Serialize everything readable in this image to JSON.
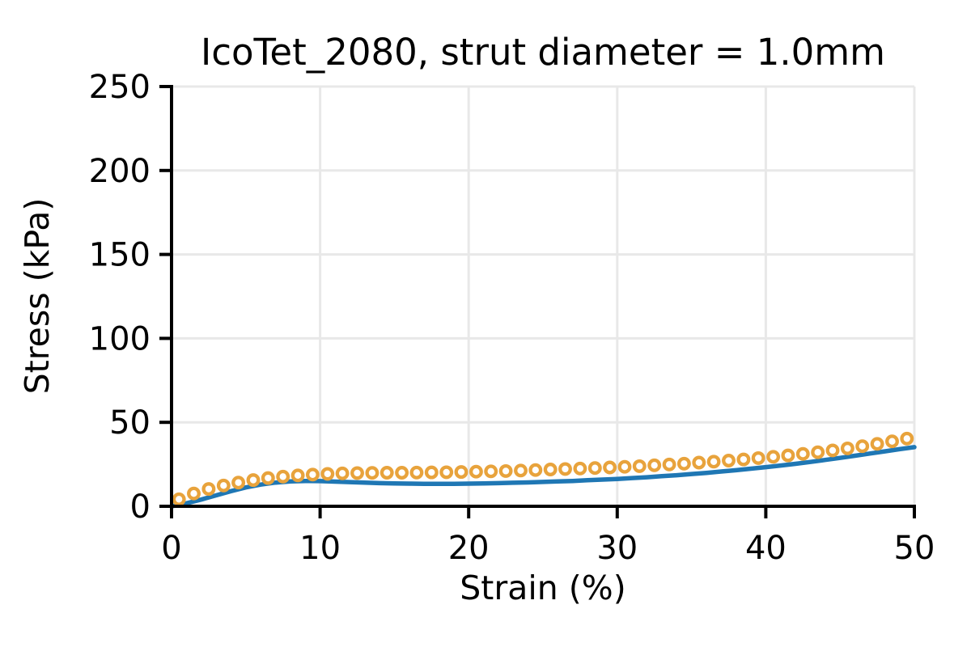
{
  "figure": {
    "background": "#ffffff",
    "text_color": "#000000",
    "grid_color": "#e8e8e8",
    "spine_color": "#000000"
  },
  "chart_data": {
    "type": "line",
    "title": "IcoTet_2080, strut diameter = 1.0mm",
    "xlabel": "Strain (%)",
    "ylabel": "Stress (kPa)",
    "xlim": [
      0,
      50
    ],
    "ylim": [
      0,
      250
    ],
    "xticks": [
      0,
      10,
      20,
      30,
      40,
      50
    ],
    "yticks": [
      0,
      50,
      100,
      150,
      200,
      250
    ],
    "grid": true,
    "legend_position": "none",
    "series": [
      {
        "name": "solid-line-series-blue",
        "type": "line",
        "color": "#1f77b4",
        "line_width": 5.5,
        "x": [
          0,
          1,
          2,
          3,
          4,
          5,
          6,
          7,
          8,
          9,
          10,
          11,
          12,
          13,
          14,
          15,
          16,
          17,
          18,
          19,
          20,
          21,
          22,
          23,
          24,
          25,
          26,
          27,
          28,
          29,
          30,
          31,
          32,
          33,
          34,
          35,
          36,
          37,
          38,
          39,
          40,
          41,
          42,
          43,
          44,
          45,
          46,
          47,
          48,
          49,
          50
        ],
        "y": [
          0,
          1.8,
          4.0,
          6.5,
          9.0,
          11.2,
          12.9,
          14.1,
          14.8,
          15.1,
          15.0,
          14.7,
          14.4,
          14.1,
          13.8,
          13.6,
          13.5,
          13.4,
          13.4,
          13.4,
          13.5,
          13.6,
          13.8,
          14.0,
          14.2,
          14.5,
          14.8,
          15.1,
          15.5,
          15.9,
          16.3,
          16.8,
          17.3,
          17.9,
          18.5,
          19.2,
          19.9,
          20.7,
          21.5,
          22.4,
          23.3,
          24.3,
          25.3,
          26.4,
          27.6,
          28.8,
          30.1,
          31.4,
          32.7,
          34.0,
          35.2
        ]
      },
      {
        "name": "open-circle-series-orange",
        "type": "scatter",
        "marker": "open-circle",
        "color": "#e8a33c",
        "marker_radius": 6.3,
        "marker_stroke_width": 4.3,
        "x": [
          0.5,
          1.5,
          2.5,
          3.5,
          4.5,
          5.5,
          6.5,
          7.5,
          8.5,
          9.5,
          10.5,
          11.5,
          12.5,
          13.5,
          14.5,
          15.5,
          16.5,
          17.5,
          18.5,
          19.5,
          20.5,
          21.5,
          22.5,
          23.5,
          24.5,
          25.5,
          26.5,
          27.5,
          28.5,
          29.5,
          30.5,
          31.5,
          32.5,
          33.5,
          34.5,
          35.5,
          36.5,
          37.5,
          38.5,
          39.5,
          40.5,
          41.5,
          42.5,
          43.5,
          44.5,
          45.5,
          46.5,
          47.5,
          48.5,
          49.5
        ],
        "y": [
          4.2,
          7.6,
          10.3,
          12.4,
          14.1,
          15.6,
          16.8,
          17.7,
          18.4,
          18.9,
          19.3,
          19.6,
          19.8,
          19.9,
          20.0,
          20.0,
          20.1,
          20.2,
          20.3,
          20.4,
          20.6,
          20.8,
          21.0,
          21.3,
          21.6,
          21.9,
          22.2,
          22.5,
          22.8,
          23.1,
          23.5,
          23.9,
          24.4,
          24.9,
          25.4,
          26.0,
          26.6,
          27.2,
          27.9,
          28.7,
          29.5,
          30.3,
          31.2,
          32.2,
          33.3,
          34.5,
          35.8,
          37.2,
          38.7,
          40.3
        ]
      }
    ]
  }
}
